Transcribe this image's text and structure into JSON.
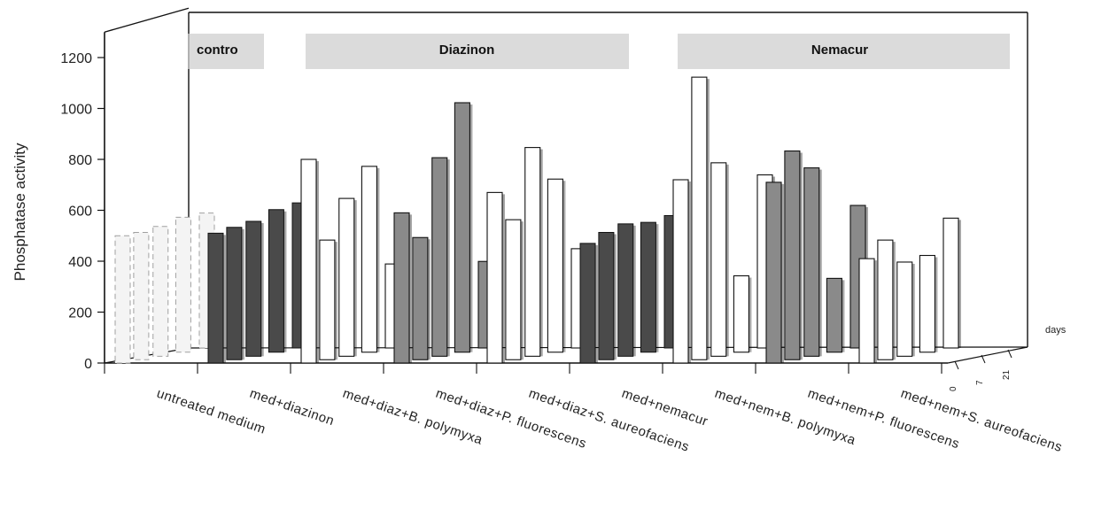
{
  "chart_data": {
    "type": "bar",
    "title": "",
    "xlabel": "",
    "ylabel": "Phosphatase activity",
    "ylim": [
      0,
      1300
    ],
    "yticks": [
      0,
      200,
      400,
      600,
      800,
      1000,
      1200
    ],
    "depth_axis_label": "days",
    "depth_ticks": [
      "0",
      "7",
      "21"
    ],
    "group_titles": [
      "contro",
      "Diazinon",
      "Nemacur"
    ],
    "categories": [
      "untreated medium",
      "med+diazinon",
      "med+diaz+B. polymyxa",
      "med+diaz+P. fluorescens",
      "med+diaz+S. aureofaciens",
      "med+nemacur",
      "med+nem+B. polymyxa",
      "med+nem+P. fluorescens",
      "med+nem+S. aureofaciens"
    ],
    "values": [
      [
        500,
        500,
        510,
        530,
        530
      ],
      [
        510,
        520,
        530,
        560,
        570
      ],
      [
        800,
        470,
        620,
        730,
        330
      ],
      [
        590,
        480,
        780,
        980,
        340
      ],
      [
        670,
        550,
        820,
        680,
        390
      ],
      [
        470,
        500,
        520,
        510,
        520
      ],
      [
        720,
        1110,
        760,
        300,
        680
      ],
      [
        710,
        820,
        740,
        290,
        560
      ],
      [
        410,
        470,
        370,
        380,
        510
      ]
    ],
    "colors": {
      "control": "#f4f4f4",
      "control_edge": "#a0a0a0",
      "dark": "#4a4a4a",
      "medium": "#8a8a8a",
      "light": "#ffffff",
      "edge": "#111111",
      "band": "#cfcfcf"
    }
  }
}
